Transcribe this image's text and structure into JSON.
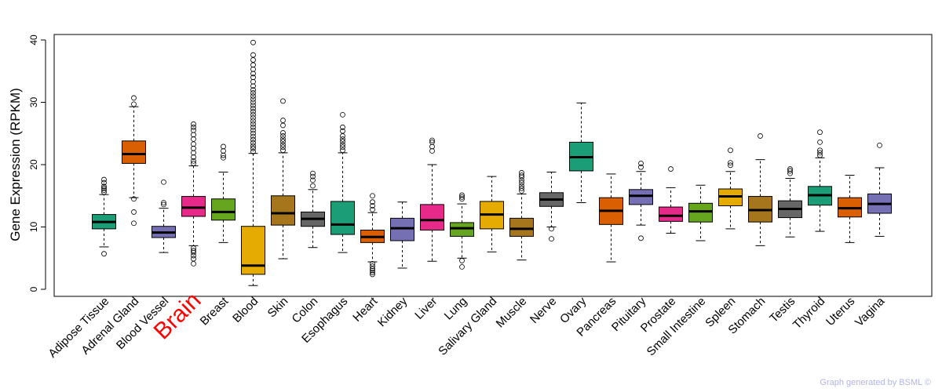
{
  "chart_data": {
    "type": "boxplot",
    "title": "",
    "xlabel": "",
    "ylabel": "Gene Expression (RPKM)",
    "ylim": [
      0,
      40
    ],
    "yticks": [
      0,
      10,
      20,
      30,
      40
    ],
    "highlight_category": "Brain",
    "highlight_color": "#ff0000",
    "series": [
      {
        "name": "Adipose Tissue",
        "color": "#1b9e77",
        "whisker_low": 6.8,
        "q1": 9.7,
        "median": 10.8,
        "q3": 12.0,
        "whisker_high": 15.2,
        "outliers": [
          5.7,
          15.6,
          15.9,
          16.2,
          16.5,
          17.1,
          17.6
        ]
      },
      {
        "name": "Adrenal Gland",
        "color": "#d95f02",
        "whisker_low": 14.7,
        "q1": 20.2,
        "median": 21.7,
        "q3": 23.8,
        "whisker_high": 29.3,
        "outliers": [
          10.6,
          12.4,
          14.5,
          29.7,
          30.7
        ]
      },
      {
        "name": "Blood Vessel",
        "color": "#7570b3",
        "whisker_low": 5.9,
        "q1": 8.3,
        "median": 9.1,
        "q3": 10.1,
        "whisker_high": 13.0,
        "outliers": [
          13.6,
          13.9,
          17.2
        ]
      },
      {
        "name": "Brain",
        "color": "#e7298a",
        "whisker_low": 7.0,
        "q1": 11.7,
        "median": 13.1,
        "q3": 14.9,
        "whisker_high": 19.8,
        "outliers": [
          4.1,
          4.9,
          5.4,
          5.9,
          6.2,
          6.6,
          20.2,
          20.6,
          21.2,
          21.9,
          22.6,
          23.3,
          24.1,
          24.8,
          25.5,
          26.0,
          26.5
        ]
      },
      {
        "name": "Breast",
        "color": "#66a61e",
        "whisker_low": 7.5,
        "q1": 11.1,
        "median": 12.4,
        "q3": 14.5,
        "whisker_high": 18.8,
        "outliers": [
          21.1,
          21.5,
          22.2,
          22.9
        ]
      },
      {
        "name": "Blood",
        "color": "#e6ab02",
        "whisker_low": 0.6,
        "q1": 2.4,
        "median": 3.8,
        "q3": 10.1,
        "whisker_high": 21.8,
        "outliers": [
          22.1,
          22.6,
          23.0,
          23.5,
          24.0,
          24.5,
          25.0,
          25.5,
          26.0,
          26.5,
          27.0,
          27.5,
          28.0,
          28.5,
          29.0,
          29.5,
          30.0,
          30.5,
          31.0,
          31.5,
          32.0,
          32.6,
          33.3,
          34.0,
          34.6,
          35.3,
          36.0,
          36.8,
          37.6,
          39.6
        ]
      },
      {
        "name": "Skin",
        "color": "#a6761d",
        "whisker_low": 4.9,
        "q1": 10.3,
        "median": 12.2,
        "q3": 15.0,
        "whisker_high": 21.9,
        "outliers": [
          22.3,
          22.8,
          23.2,
          23.7,
          24.1,
          24.6,
          25.1,
          26.3,
          27.1,
          30.2
        ]
      },
      {
        "name": "Colon",
        "color": "#666666",
        "whisker_low": 6.7,
        "q1": 10.1,
        "median": 11.3,
        "q3": 12.4,
        "whisker_high": 16.0,
        "outliers": [
          16.6,
          17.5,
          18.1,
          18.6
        ]
      },
      {
        "name": "Esophagus",
        "color": "#1b9e77",
        "whisker_low": 5.9,
        "q1": 8.8,
        "median": 10.4,
        "q3": 14.1,
        "whisker_high": 21.9,
        "outliers": [
          22.3,
          22.8,
          23.2,
          23.7,
          24.1,
          24.6,
          25.4,
          26.0,
          28.0
        ]
      },
      {
        "name": "Heart",
        "color": "#d95f02",
        "whisker_low": 4.4,
        "q1": 7.5,
        "median": 8.4,
        "q3": 9.5,
        "whisker_high": 12.3,
        "outliers": [
          2.4,
          2.7,
          3.0,
          3.3,
          3.7,
          4.1,
          12.8,
          13.4,
          14.0,
          15.0
        ]
      },
      {
        "name": "Kidney",
        "color": "#7570b3",
        "whisker_low": 3.4,
        "q1": 7.8,
        "median": 9.8,
        "q3": 11.4,
        "whisker_high": 14.0,
        "outliers": []
      },
      {
        "name": "Liver",
        "color": "#e7298a",
        "whisker_low": 4.5,
        "q1": 9.5,
        "median": 11.1,
        "q3": 13.6,
        "whisker_high": 20.0,
        "outliers": [
          22.2,
          22.9,
          23.6,
          23.9
        ]
      },
      {
        "name": "Lung",
        "color": "#66a61e",
        "whisker_low": 5.0,
        "q1": 8.5,
        "median": 9.8,
        "q3": 10.7,
        "whisker_high": 13.7,
        "outliers": [
          3.6,
          4.6,
          14.5,
          14.8,
          15.1
        ]
      },
      {
        "name": "Salivary Gland",
        "color": "#e6ab02",
        "whisker_low": 6.0,
        "q1": 9.7,
        "median": 12.0,
        "q3": 14.1,
        "whisker_high": 18.1,
        "outliers": []
      },
      {
        "name": "Muscle",
        "color": "#a6761d",
        "whisker_low": 4.7,
        "q1": 8.5,
        "median": 9.7,
        "q3": 11.4,
        "whisker_high": 15.3,
        "outliers": [
          15.8,
          16.2,
          16.6,
          17.1,
          17.5,
          18.0,
          18.3,
          18.7
        ]
      },
      {
        "name": "Nerve",
        "color": "#666666",
        "whisker_low": 10.0,
        "q1": 13.3,
        "median": 14.4,
        "q3": 15.5,
        "whisker_high": 18.8,
        "outliers": [
          8.1,
          9.7
        ]
      },
      {
        "name": "Ovary",
        "color": "#1b9e77",
        "whisker_low": 13.9,
        "q1": 19.0,
        "median": 21.2,
        "q3": 23.6,
        "whisker_high": 29.9,
        "outliers": []
      },
      {
        "name": "Pancreas",
        "color": "#d95f02",
        "whisker_low": 4.4,
        "q1": 10.4,
        "median": 12.6,
        "q3": 14.7,
        "whisker_high": 18.5,
        "outliers": []
      },
      {
        "name": "Pituitary",
        "color": "#7570b3",
        "whisker_low": 10.3,
        "q1": 13.6,
        "median": 15.0,
        "q3": 16.0,
        "whisker_high": 18.9,
        "outliers": [
          8.2,
          19.6,
          20.2
        ]
      },
      {
        "name": "Prostate",
        "color": "#e7298a",
        "whisker_low": 9.0,
        "q1": 10.9,
        "median": 11.8,
        "q3": 13.2,
        "whisker_high": 16.3,
        "outliers": [
          19.3
        ]
      },
      {
        "name": "Small Intestine",
        "color": "#66a61e",
        "whisker_low": 7.8,
        "q1": 10.8,
        "median": 12.5,
        "q3": 13.8,
        "whisker_high": 16.7,
        "outliers": []
      },
      {
        "name": "Spleen",
        "color": "#e6ab02",
        "whisker_low": 9.7,
        "q1": 13.4,
        "median": 14.9,
        "q3": 16.1,
        "whisker_high": 18.9,
        "outliers": [
          19.9,
          20.3,
          22.3
        ]
      },
      {
        "name": "Stomach",
        "color": "#a6761d",
        "whisker_low": 7.0,
        "q1": 10.8,
        "median": 12.7,
        "q3": 14.9,
        "whisker_high": 20.8,
        "outliers": [
          24.6
        ]
      },
      {
        "name": "Testis",
        "color": "#666666",
        "whisker_low": 8.4,
        "q1": 11.5,
        "median": 12.9,
        "q3": 14.2,
        "whisker_high": 17.8,
        "outliers": [
          18.6,
          19.0,
          19.3
        ]
      },
      {
        "name": "Thyroid",
        "color": "#1b9e77",
        "whisker_low": 9.3,
        "q1": 13.5,
        "median": 15.1,
        "q3": 16.5,
        "whisker_high": 21.1,
        "outliers": [
          21.5,
          21.9,
          22.3,
          23.6,
          25.2
        ]
      },
      {
        "name": "Uterus",
        "color": "#d95f02",
        "whisker_low": 7.5,
        "q1": 11.6,
        "median": 13.0,
        "q3": 14.7,
        "whisker_high": 18.3,
        "outliers": []
      },
      {
        "name": "Vagina",
        "color": "#7570b3",
        "whisker_low": 8.5,
        "q1": 12.2,
        "median": 13.7,
        "q3": 15.3,
        "whisker_high": 19.5,
        "outliers": [
          23.1
        ]
      }
    ]
  },
  "footer": {
    "watermark": "Graph generated by BSML ©"
  }
}
